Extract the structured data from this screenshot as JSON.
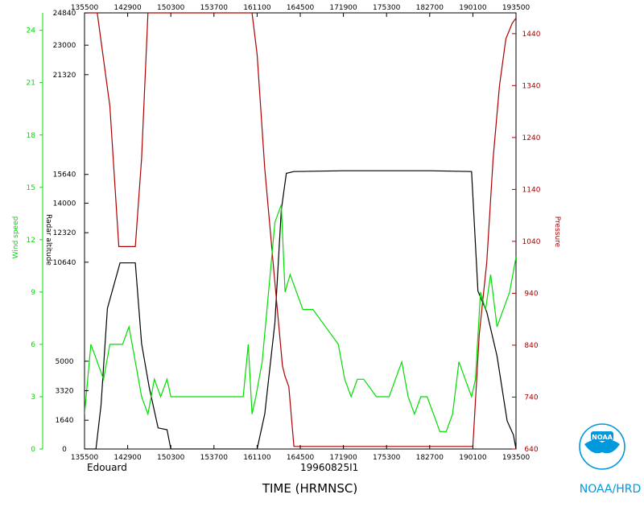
{
  "chart_data": {
    "type": "line",
    "xlabel": "TIME (HRMNSC)",
    "storm_name": "Edouard",
    "flight_id": "19960825I1",
    "x_ticks": [
      "135500",
      "142900",
      "150300",
      "153700",
      "161100",
      "164500",
      "171900",
      "175300",
      "182700",
      "190100",
      "193500"
    ],
    "xlim": [
      "135500",
      "193500"
    ],
    "axes": [
      {
        "name": "Wind speed",
        "color": "#00dd00",
        "ylim": [
          0,
          25
        ],
        "ticks": [
          "0",
          "3",
          "6",
          "9",
          "12",
          "15",
          "18",
          "21",
          "24"
        ]
      },
      {
        "name": "Radar altitude",
        "color": "#000000",
        "ylim": [
          0,
          24840
        ],
        "ticks": [
          "0",
          "1640",
          "3320",
          "5000",
          "10640",
          "12320",
          "14000",
          "15640",
          "21320",
          "23000",
          "24840"
        ]
      },
      {
        "name": "Pressure",
        "color": "#aa0000",
        "ylim": [
          640,
          1480
        ],
        "ticks": [
          "640",
          "740",
          "840",
          "940",
          "1040",
          "1140",
          "1240",
          "1340",
          "1440"
        ]
      }
    ],
    "series": [
      {
        "name": "Radar altitude",
        "color": "#000000",
        "x": [
          "135500",
          "140400",
          "140800",
          "141300",
          "142300",
          "143200",
          "143500",
          "144000",
          "144600",
          "145300",
          "150000",
          "150300",
          "161100",
          "161700",
          "162500",
          "163000",
          "163400",
          "164000",
          "171900",
          "175300",
          "182700",
          "190000",
          "190500",
          "191200",
          "192000",
          "192800",
          "193300",
          "193500"
        ],
        "y": [
          0,
          0,
          2500,
          8000,
          10600,
          10600,
          10600,
          6000,
          3500,
          1200,
          1100,
          0,
          0,
          2000,
          7200,
          13600,
          15700,
          15800,
          15850,
          15850,
          15850,
          15800,
          9000,
          7800,
          5300,
          1600,
          800,
          0
        ]
      },
      {
        "name": "Pressure",
        "color": "#aa0000",
        "x": [
          "135500",
          "140500",
          "141500",
          "142200",
          "143500",
          "144000",
          "144500",
          "150000",
          "160700",
          "161100",
          "161700",
          "162500",
          "163100",
          "163300",
          "163600",
          "164000",
          "171900",
          "175300",
          "182700",
          "190100",
          "190600",
          "191200",
          "191700",
          "192200",
          "192700",
          "193200",
          "193500"
        ],
        "y": [
          1480,
          1480,
          1300,
          1030,
          1030,
          1200,
          1480,
          1480,
          1480,
          1400,
          1180,
          960,
          800,
          780,
          760,
          645,
          645,
          645,
          645,
          645,
          860,
          1000,
          1200,
          1340,
          1430,
          1460,
          1470
        ]
      },
      {
        "name": "Wind speed",
        "color": "#00dd00",
        "x": [
          "135500",
          "140000",
          "140500",
          "141000",
          "141500",
          "142000",
          "142500",
          "143000",
          "143500",
          "144000",
          "144500",
          "145000",
          "145500",
          "150000",
          "150300",
          "151500",
          "153000",
          "154500",
          "155500",
          "160000",
          "160400",
          "160700",
          "161000",
          "161500",
          "162000",
          "162500",
          "163000",
          "163300",
          "163700",
          "164200",
          "164700",
          "165500",
          "170500",
          "171500",
          "172000",
          "172500",
          "173000",
          "173500",
          "174500",
          "175500",
          "180000",
          "180500",
          "181000",
          "181500",
          "182000",
          "182500",
          "183000",
          "183500",
          "184000",
          "184500",
          "185000",
          "185500",
          "190000",
          "190300",
          "190700",
          "191100",
          "191500",
          "192000",
          "192500",
          "193000",
          "193500"
        ],
        "y": [
          2,
          6,
          5,
          4,
          6,
          6,
          6,
          7,
          5,
          3,
          2,
          4,
          3,
          4,
          3,
          3,
          3,
          3,
          3,
          3,
          6,
          2,
          3,
          5,
          9,
          13,
          14,
          9,
          10,
          9,
          8,
          8,
          7,
          6,
          4,
          3,
          4,
          4,
          3,
          3,
          4,
          5,
          3,
          2,
          3,
          3,
          2,
          1,
          1,
          2,
          5,
          4,
          3,
          4,
          9,
          8,
          10,
          7,
          8,
          9,
          11
        ]
      }
    ]
  },
  "logo": {
    "text": "NOAA/HRD",
    "emblem_text": "NOAA"
  }
}
